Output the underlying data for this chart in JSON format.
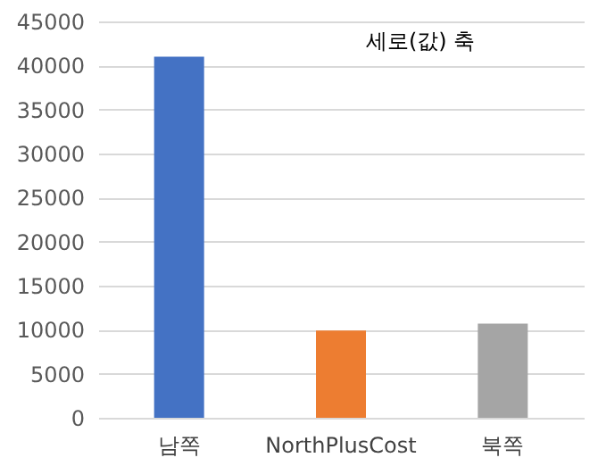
{
  "chart_data": {
    "type": "bar",
    "categories": [
      "남쪽",
      "NorthPlusCost",
      "북쪽"
    ],
    "values": [
      41000,
      9900,
      10700
    ],
    "colors": [
      "#4472c4",
      "#ed7d31",
      "#a5a5a5"
    ],
    "ylim": [
      0,
      45000
    ],
    "yticks": [
      0,
      5000,
      10000,
      15000,
      20000,
      25000,
      30000,
      35000,
      40000,
      45000
    ],
    "grid": "y",
    "annotations": [
      "세로(값) 축"
    ]
  }
}
